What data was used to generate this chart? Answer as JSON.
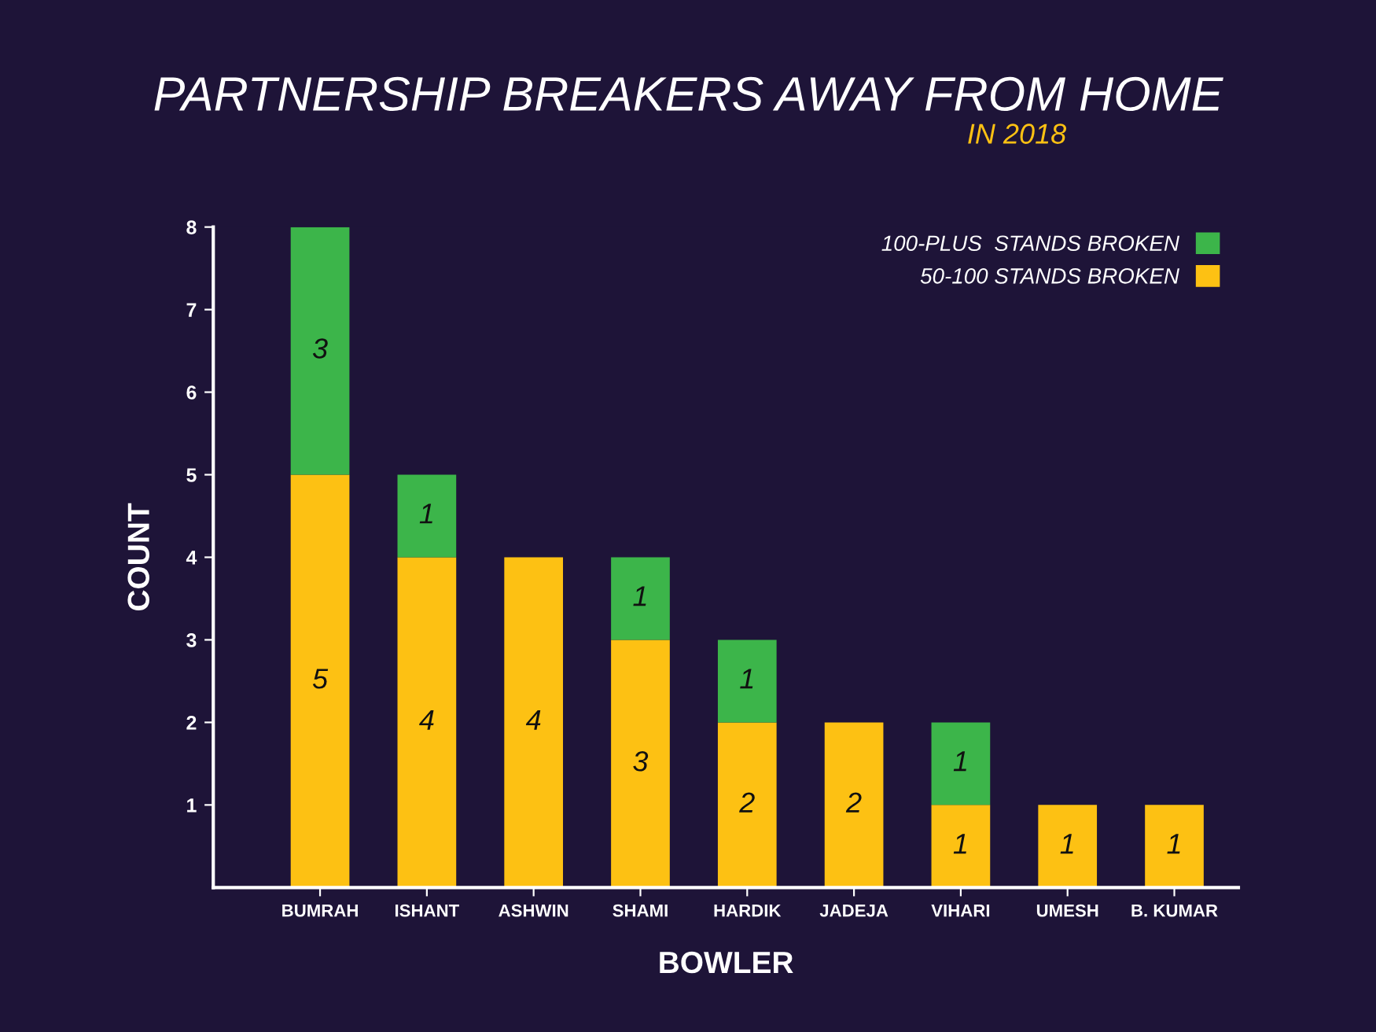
{
  "chart_data": {
    "type": "bar",
    "title": "PARTNERSHIP BREAKERS AWAY FROM HOME",
    "subtitle": "IN 2018",
    "xlabel": "BOWLER",
    "ylabel": "COUNT",
    "categories": [
      "BUMRAH",
      "ISHANT",
      "ASHWIN",
      "SHAMI",
      "HARDIK",
      "JADEJA",
      "VIHARI",
      "UMESH",
      "B. KUMAR"
    ],
    "stacked": true,
    "data_labels": true,
    "legend": "top right",
    "grid": false,
    "ylim": [
      0,
      8
    ],
    "yticks": [
      1,
      2,
      3,
      4,
      5,
      6,
      7,
      8
    ],
    "series": [
      {
        "name": "50-100 STANDS BROKEN",
        "color": "#fdc113",
        "values": [
          5,
          4,
          4,
          3,
          2,
          2,
          1,
          1,
          1
        ]
      },
      {
        "name": "100-PLUS  STANDS BROKEN",
        "color": "#3cb54a",
        "values": [
          3,
          1,
          null,
          1,
          1,
          null,
          1,
          null,
          null
        ]
      }
    ]
  }
}
